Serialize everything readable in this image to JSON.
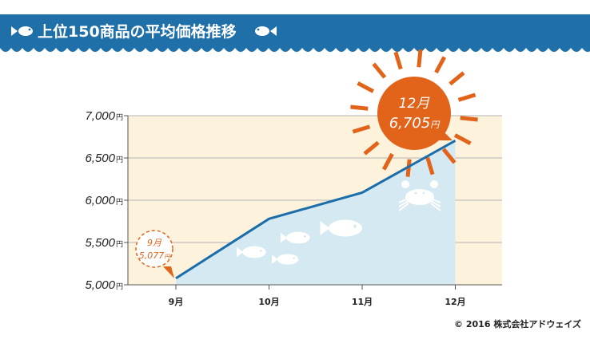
{
  "header": {
    "title": "上位150商品の平均価格推移"
  },
  "copyright": "© 2016 株式会社アドウェイズ",
  "colors": {
    "header_bg": "#1f6fa8",
    "plot_bg": "#fdf2dc",
    "area_fill": "#d5e9f3",
    "line": "#1b6ea9",
    "accent": "#e2631a",
    "axis": "#555555"
  },
  "icons": [
    "fish-icon",
    "sun-icon",
    "crab-icon"
  ],
  "chart_data": {
    "type": "area",
    "title": "上位150商品の平均価格推移",
    "categories": [
      "9月",
      "10月",
      "11月",
      "12月"
    ],
    "values": [
      5077,
      5780,
      6090,
      6705
    ],
    "ylim": [
      5000,
      7000
    ],
    "yticks": [
      5000,
      5500,
      6000,
      6500,
      7000
    ],
    "ytick_labels": [
      "5,000",
      "5,500",
      "6,000",
      "6,500",
      "7,000"
    ],
    "yunit": "円",
    "grid": true,
    "annotations": [
      {
        "month": "9月",
        "value": "5,077",
        "unit": "円"
      },
      {
        "month": "12月",
        "value": "6,705",
        "unit": "円"
      }
    ]
  }
}
